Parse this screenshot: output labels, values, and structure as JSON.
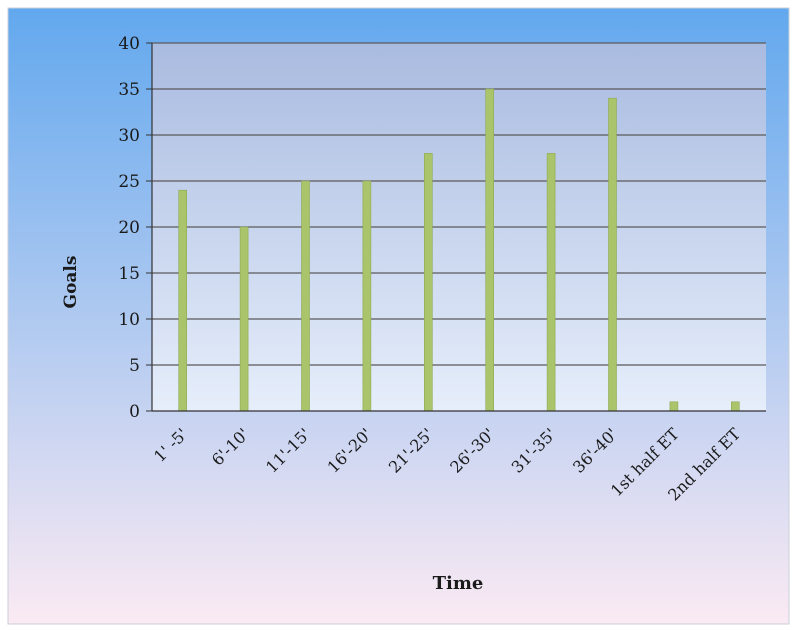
{
  "chart_data": {
    "type": "bar",
    "title": "",
    "xlabel": "Time",
    "ylabel": "Goals",
    "categories": [
      "1' -5'",
      "6'-10'",
      "11'-15'",
      "16'-20'",
      "21'-25'",
      "26'-30'",
      "31'-35'",
      "36'-40'",
      "1st half ET",
      "2nd half ET"
    ],
    "values": [
      24,
      20,
      25,
      25,
      28,
      35,
      28,
      34,
      1,
      1
    ],
    "ylim": [
      0,
      40
    ],
    "yticks": [
      0,
      5,
      10,
      15,
      20,
      25,
      30,
      35,
      40
    ],
    "grid": true,
    "legend": "none",
    "colors": {
      "bar": "#a9c46a",
      "bar_edge": "#8faa52",
      "grid": "#5a5a5a",
      "bg_top": "#62a8ee",
      "bg_bottom": "#fbeaf3",
      "plot_top": "#a9bbe0",
      "plot_bottom": "#e6eefb"
    }
  }
}
